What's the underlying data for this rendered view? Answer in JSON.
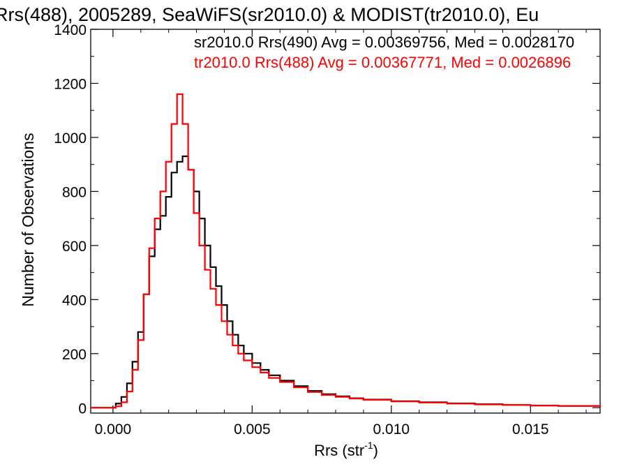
{
  "chart_data": {
    "type": "line",
    "title": "Rrs(488), 2005289, SeaWiFS(sr2010.0) & MODIST(tr2010.0), Eu",
    "xlabel_main": "Rrs (str",
    "xlabel_sup": "-1",
    "xlabel_close": ")",
    "ylabel": "Number of Observations",
    "xlim": [
      -0.0008,
      0.0175
    ],
    "ylim": [
      -20,
      1400
    ],
    "xticks": [
      0.0,
      0.005,
      0.01,
      0.015
    ],
    "xtick_labels": [
      "0.000",
      "0.005",
      "0.010",
      "0.015"
    ],
    "yticks": [
      0,
      200,
      400,
      600,
      800,
      1000,
      1200,
      1400
    ],
    "ytick_labels": [
      "0",
      "200",
      "400",
      "600",
      "800",
      "1000",
      "1200",
      "1400"
    ],
    "grid": false,
    "series": [
      {
        "name": "sr2010.0 Rrs(490) Avg = 0.00369756, Med = 0.0028170",
        "color": "#000000",
        "points": [
          [
            -0.0008,
            0
          ],
          [
            -0.0002,
            0
          ],
          [
            0.0001,
            15
          ],
          [
            0.0003,
            40
          ],
          [
            0.0005,
            90
          ],
          [
            0.0007,
            170
          ],
          [
            0.0009,
            280
          ],
          [
            0.0011,
            420
          ],
          [
            0.0013,
            560
          ],
          [
            0.0015,
            660
          ],
          [
            0.0017,
            710
          ],
          [
            0.0019,
            780
          ],
          [
            0.0021,
            870
          ],
          [
            0.0023,
            910
          ],
          [
            0.0025,
            930
          ],
          [
            0.0027,
            880
          ],
          [
            0.0029,
            800
          ],
          [
            0.0031,
            700
          ],
          [
            0.0033,
            600
          ],
          [
            0.0035,
            520
          ],
          [
            0.0037,
            450
          ],
          [
            0.0039,
            380
          ],
          [
            0.0041,
            320
          ],
          [
            0.0043,
            270
          ],
          [
            0.0045,
            230
          ],
          [
            0.0047,
            200
          ],
          [
            0.005,
            165
          ],
          [
            0.0053,
            140
          ],
          [
            0.0056,
            120
          ],
          [
            0.006,
            100
          ],
          [
            0.0065,
            80
          ],
          [
            0.007,
            62
          ],
          [
            0.0075,
            50
          ],
          [
            0.008,
            42
          ],
          [
            0.0085,
            35
          ],
          [
            0.009,
            30
          ],
          [
            0.01,
            24
          ],
          [
            0.011,
            20
          ],
          [
            0.012,
            16
          ],
          [
            0.013,
            13
          ],
          [
            0.014,
            10
          ],
          [
            0.015,
            8
          ],
          [
            0.016,
            6
          ],
          [
            0.0175,
            4
          ]
        ]
      },
      {
        "name": "tr2010.0 Rrs(488) Avg = 0.00367771, Med = 0.0026896",
        "color": "#ff0000",
        "points": [
          [
            -0.0008,
            0
          ],
          [
            -0.0002,
            0
          ],
          [
            0.0001,
            5
          ],
          [
            0.0003,
            20
          ],
          [
            0.0005,
            60
          ],
          [
            0.0007,
            140
          ],
          [
            0.0009,
            250
          ],
          [
            0.0011,
            420
          ],
          [
            0.0013,
            590
          ],
          [
            0.0015,
            700
          ],
          [
            0.0017,
            800
          ],
          [
            0.0019,
            910
          ],
          [
            0.0021,
            1050
          ],
          [
            0.0023,
            1160
          ],
          [
            0.0025,
            1050
          ],
          [
            0.0027,
            880
          ],
          [
            0.0029,
            720
          ],
          [
            0.0031,
            600
          ],
          [
            0.0033,
            510
          ],
          [
            0.0035,
            440
          ],
          [
            0.0037,
            380
          ],
          [
            0.0039,
            320
          ],
          [
            0.0041,
            270
          ],
          [
            0.0043,
            230
          ],
          [
            0.0045,
            200
          ],
          [
            0.0047,
            175
          ],
          [
            0.005,
            150
          ],
          [
            0.0053,
            130
          ],
          [
            0.0056,
            110
          ],
          [
            0.006,
            95
          ],
          [
            0.0065,
            75
          ],
          [
            0.007,
            58
          ],
          [
            0.0075,
            47
          ],
          [
            0.008,
            40
          ],
          [
            0.0085,
            34
          ],
          [
            0.009,
            29
          ],
          [
            0.01,
            23
          ],
          [
            0.011,
            19
          ],
          [
            0.012,
            15
          ],
          [
            0.013,
            12
          ],
          [
            0.014,
            10
          ],
          [
            0.015,
            8
          ],
          [
            0.016,
            6
          ],
          [
            0.0175,
            4
          ]
        ]
      }
    ]
  }
}
